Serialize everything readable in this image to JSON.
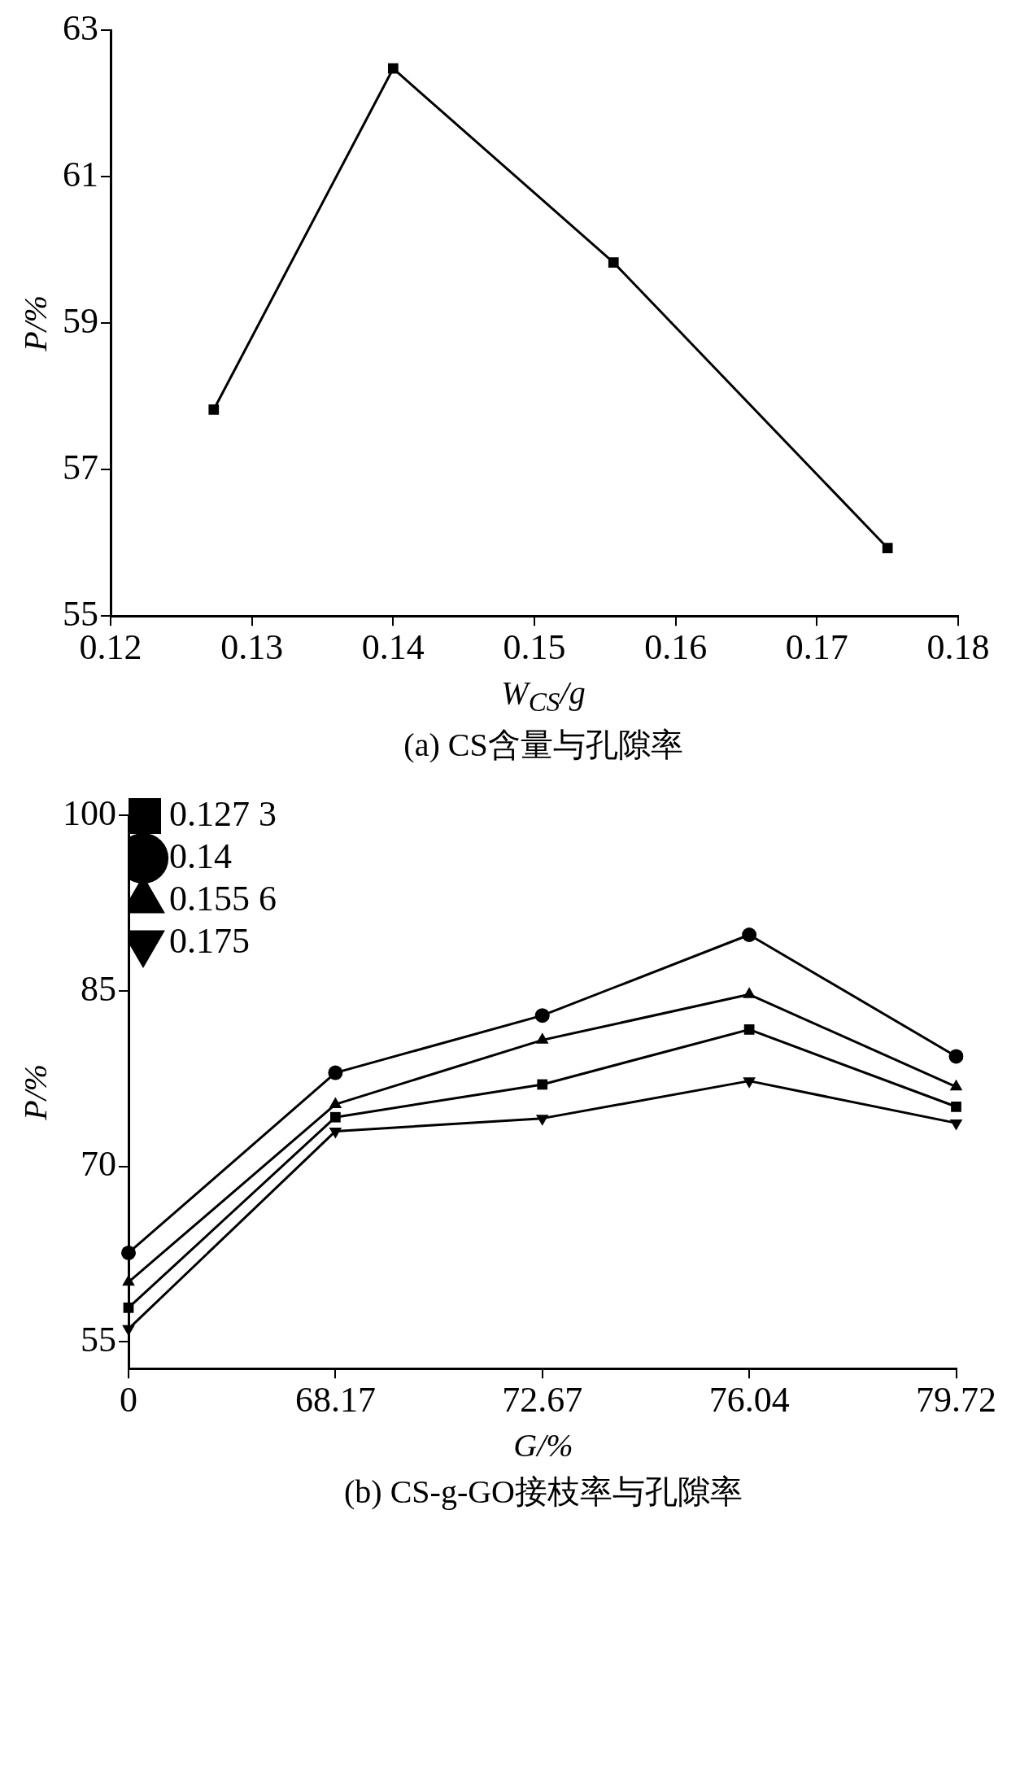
{
  "chart_data": [
    {
      "type": "line",
      "title": "(a) CS含量与孔隙率",
      "xlabel": "W$_{CS}$/g",
      "ylabel": "P/%",
      "xlim": [
        0.12,
        0.18
      ],
      "xticks": [
        0.12,
        0.13,
        0.14,
        0.15,
        0.16,
        0.17,
        0.18
      ],
      "ylim": [
        55,
        63
      ],
      "yticks": [
        55,
        57,
        59,
        61,
        63
      ],
      "grid": false,
      "legend": false,
      "marker": "square",
      "series": [
        {
          "color": "#000000",
          "x": [
            0.1273,
            0.14,
            0.1556,
            0.175
          ],
          "values": [
            57.82,
            62.48,
            59.83,
            55.93
          ]
        }
      ]
    },
    {
      "type": "line",
      "title": "(b) CS-g-GO接枝率与孔隙率",
      "xlabel": "G/%",
      "ylabel": "P/%",
      "categories": [
        "0",
        "68.17",
        "72.67",
        "76.04",
        "79.72"
      ],
      "ylim": [
        52.7,
        100
      ],
      "yticks": [
        55,
        70,
        85,
        100
      ],
      "grid": false,
      "legend": "top left",
      "series": [
        {
          "name": "0.127 3",
          "color": "#000000",
          "marker": "square",
          "values": [
            57.9,
            74.2,
            77.0,
            81.7,
            75.1
          ]
        },
        {
          "name": "0.14",
          "color": "#000000",
          "marker": "circle",
          "values": [
            62.6,
            78.0,
            82.9,
            89.8,
            79.4
          ]
        },
        {
          "name": "0.155 6",
          "color": "#000000",
          "marker": "triangle",
          "values": [
            60.1,
            75.3,
            80.8,
            84.7,
            76.8
          ]
        },
        {
          "name": "0.175",
          "color": "#000000",
          "marker": "triangle_down",
          "values": [
            56.1,
            73.0,
            74.1,
            77.3,
            73.7
          ]
        }
      ]
    }
  ]
}
